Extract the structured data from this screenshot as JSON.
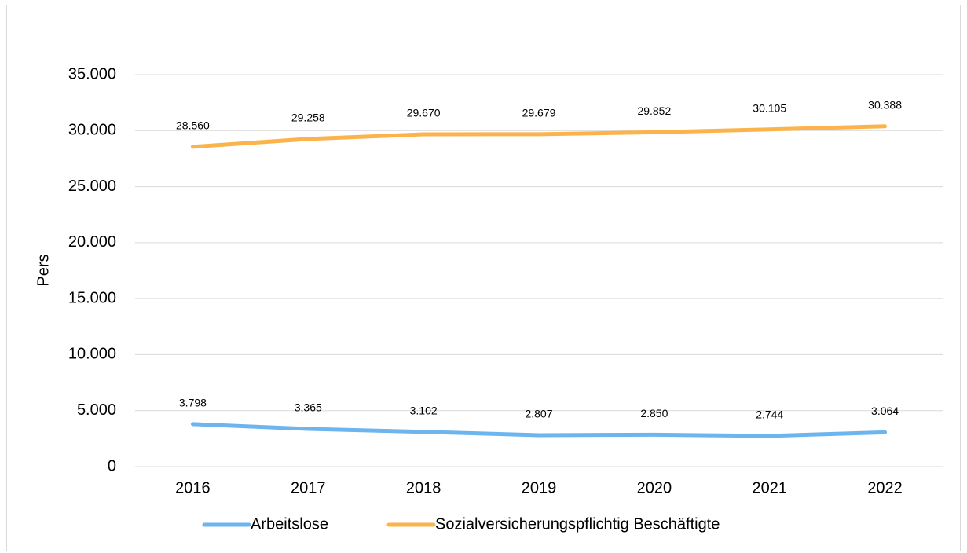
{
  "chart_data": {
    "type": "line",
    "y_label": "Pers",
    "categories": [
      "2016",
      "2017",
      "2018",
      "2019",
      "2020",
      "2021",
      "2022"
    ],
    "series": [
      {
        "name": "Arbeitslose",
        "color": "#6db5ee",
        "values": [
          3798,
          3365,
          3102,
          2807,
          2850,
          2744,
          3064
        ],
        "value_labels": [
          "3.798",
          "3.365",
          "3.102",
          "2.807",
          "2.850",
          "2.744",
          "3.064"
        ]
      },
      {
        "name": "Sozialversicherungspflichtig Beschäftigte",
        "color": "#fbb44b",
        "values": [
          28560,
          29258,
          29670,
          29679,
          29852,
          30105,
          30388
        ],
        "value_labels": [
          "28.560",
          "29.258",
          "29.670",
          "29.679",
          "29.852",
          "30.105",
          "30.388"
        ]
      }
    ],
    "ylim": [
      0,
      35000
    ],
    "yticks": [
      0,
      {
        "value": 5000,
        "label": "5.000"
      },
      {
        "value": 10000,
        "label": "10.000"
      },
      {
        "value": 15000,
        "label": "15.000"
      },
      {
        "value": 20000,
        "label": "20.000"
      },
      {
        "value": 25000,
        "label": "25.000"
      },
      {
        "value": 30000,
        "label": "30.000"
      },
      {
        "value": 35000,
        "label": "35.000"
      }
    ],
    "grid": true,
    "legend": "bottom"
  }
}
